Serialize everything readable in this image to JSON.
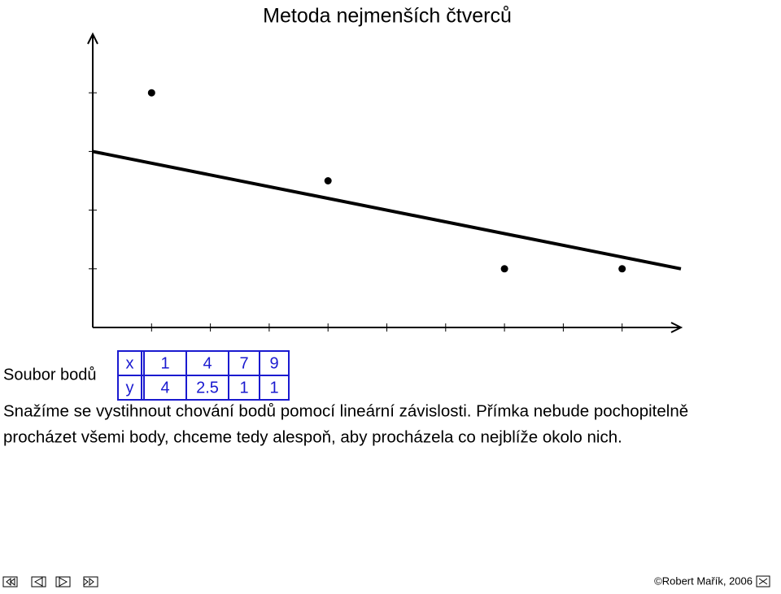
{
  "title": "Metoda nejmenších čtverců",
  "chart_data": {
    "type": "scatter",
    "x": [
      1,
      4,
      7,
      9
    ],
    "values": [
      4,
      2.5,
      1,
      1
    ],
    "color": "#000000",
    "fit_line": {
      "x": [
        0,
        10
      ],
      "values": [
        3,
        1
      ],
      "color": "#000000"
    },
    "xlim": [
      0,
      10
    ],
    "ylim": [
      0,
      5
    ],
    "xticks": [
      1,
      2,
      3,
      4,
      5,
      6,
      7,
      8,
      9
    ],
    "yticks": [
      1,
      2,
      3,
      4
    ]
  },
  "table": {
    "caption": "Soubor bodů",
    "row_labels": [
      "x",
      "y"
    ]
  },
  "text": [
    "Snažíme se vystihnout chování bodů pomocí lineární závislosti. Přímka nebude pochopitelně",
    "procházet všemi body, chceme tedy alespoň, aby procházela co nejblíže okolo nich."
  ],
  "footer": "©Robert Mařík, 2006"
}
